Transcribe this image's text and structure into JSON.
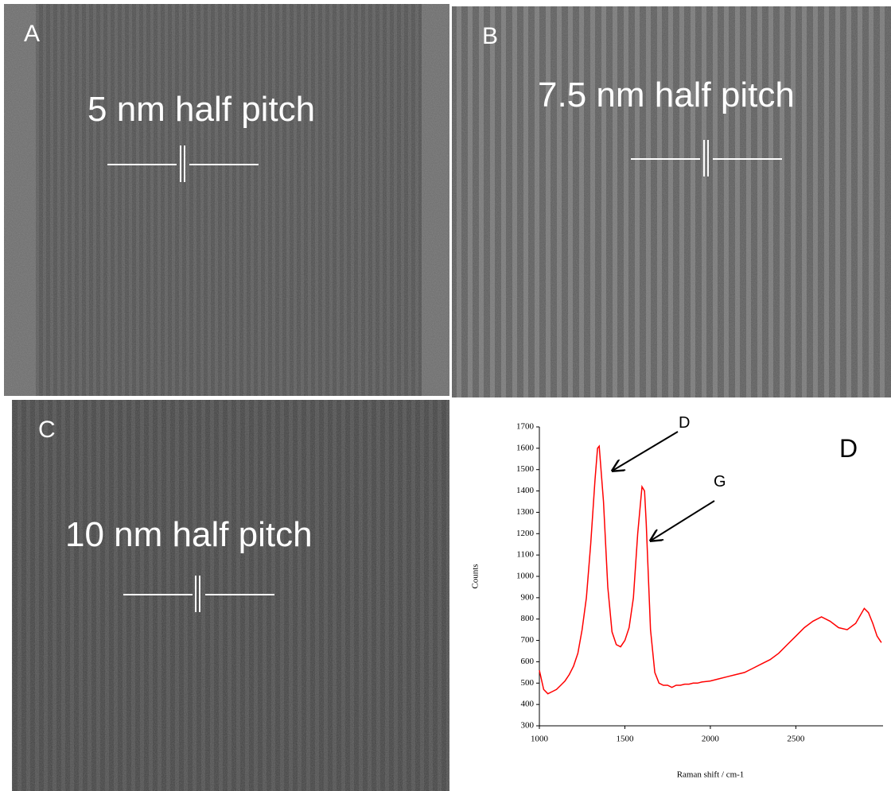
{
  "panels": [
    {
      "label": "A",
      "caption": "5 nm half pitch"
    },
    {
      "label": "B",
      "caption": "7.5 nm half pitch"
    },
    {
      "label": "C",
      "caption": "10 nm half pitch"
    }
  ],
  "chart_data": {
    "type": "line",
    "panel_label": "D",
    "x_label": "Raman shift / cm-1",
    "y_label": "Counts",
    "annotations": [
      "D",
      "G"
    ],
    "color": "#ff0000",
    "x": [
      1000,
      1025,
      1050,
      1075,
      1100,
      1125,
      1150,
      1175,
      1200,
      1225,
      1250,
      1275,
      1300,
      1325,
      1340,
      1350,
      1375,
      1400,
      1425,
      1450,
      1475,
      1500,
      1525,
      1550,
      1575,
      1600,
      1615,
      1625,
      1650,
      1675,
      1700,
      1725,
      1750,
      1775,
      1800,
      1825,
      1850,
      1875,
      1900,
      1925,
      1950,
      2000,
      2050,
      2100,
      2150,
      2200,
      2250,
      2300,
      2350,
      2400,
      2450,
      2500,
      2550,
      2600,
      2650,
      2700,
      2750,
      2800,
      2850,
      2900,
      2925,
      2950,
      2975,
      3000
    ],
    "values": [
      560,
      470,
      450,
      460,
      470,
      490,
      510,
      540,
      580,
      640,
      750,
      900,
      1150,
      1450,
      1600,
      1610,
      1350,
      950,
      740,
      680,
      670,
      700,
      760,
      900,
      1200,
      1420,
      1400,
      1250,
      750,
      550,
      500,
      490,
      490,
      480,
      490,
      490,
      495,
      495,
      500,
      500,
      505,
      510,
      520,
      530,
      540,
      550,
      570,
      590,
      610,
      640,
      680,
      720,
      760,
      790,
      810,
      790,
      760,
      750,
      780,
      850,
      830,
      780,
      720,
      690
    ],
    "xlim": [
      1000,
      3010
    ],
    "xticks": [
      1000,
      1500,
      2000,
      2500
    ],
    "ylim": [
      300,
      1700
    ],
    "yticks": [
      300,
      400,
      500,
      600,
      700,
      800,
      900,
      1000,
      1100,
      1200,
      1300,
      1400,
      1500,
      1600,
      1700
    ]
  }
}
